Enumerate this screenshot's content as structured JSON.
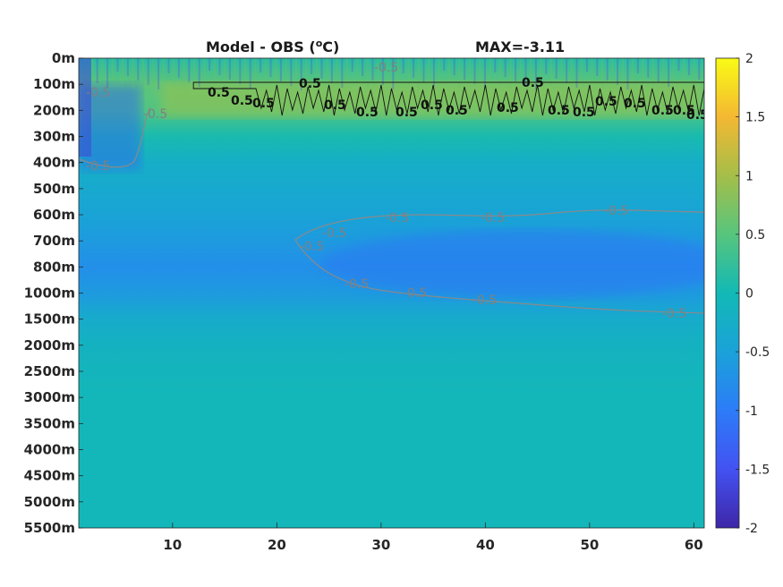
{
  "chart_data": {
    "type": "heatmap",
    "title_left": "Model - OBS (",
    "title_sup": "o",
    "title_right": "C)",
    "max_label": "MAX=-3.11",
    "xlim": [
      1,
      61
    ],
    "x_ticks": [
      10,
      20,
      30,
      40,
      50,
      60
    ],
    "depth_ticks": [
      "0m",
      "100m",
      "200m",
      "300m",
      "400m",
      "500m",
      "600m",
      "700m",
      "800m",
      "1000m",
      "1500m",
      "2000m",
      "2500m",
      "3000m",
      "3500m",
      "4000m",
      "4500m",
      "5000m",
      "5500m"
    ],
    "colorbar": {
      "colormap": "parula",
      "clim": [
        -2,
        2
      ],
      "ticks": [
        2,
        1.5,
        1,
        0.5,
        0,
        -0.5,
        -1,
        -1.5,
        -2
      ],
      "tick_labels": [
        "2",
        "1.5",
        "1",
        "0.5",
        "0",
        "-0.5",
        "-1",
        "-1.5",
        "-2"
      ]
    },
    "field_by_depth_level": [
      {
        "depth": "0m",
        "value": 0.15
      },
      {
        "depth": "100m",
        "value": 0.55
      },
      {
        "depth": "200m",
        "value": 0.45
      },
      {
        "depth": "300m",
        "value": 0.05
      },
      {
        "depth": "400m",
        "value": -0.25
      },
      {
        "depth": "500m",
        "value": -0.35
      },
      {
        "depth": "600m",
        "value": -0.45
      },
      {
        "depth": "700m",
        "value": -0.6
      },
      {
        "depth": "800m",
        "value": -0.75
      },
      {
        "depth": "1000m",
        "value": -0.6
      },
      {
        "depth": "1500m",
        "value": -0.3
      },
      {
        "depth": "2000m",
        "value": -0.15
      },
      {
        "depth": "2500m",
        "value": -0.1
      },
      {
        "depth": "3000m",
        "value": -0.05
      },
      {
        "depth": "3500m",
        "value": -0.05
      },
      {
        "depth": "4000m",
        "value": -0.05
      },
      {
        "depth": "4500m",
        "value": -0.05
      },
      {
        "depth": "5000m",
        "value": -0.05
      },
      {
        "depth": "5500m",
        "value": -0.05
      }
    ],
    "contours": [
      {
        "level": 0.5,
        "color": "#111111",
        "labels": [
          "0.5",
          "0.5",
          "0.5",
          "0.5",
          "0.5",
          "0.5",
          "0.5",
          "0.5",
          "0.5",
          "0.5",
          "0.5",
          "0.5",
          "0.5",
          "0.5",
          "0.5",
          "0.5",
          "0.5",
          "0.5"
        ]
      },
      {
        "level": -0.5,
        "color": "#808080",
        "labels": [
          "-0.5",
          "-0.5",
          "-0.5",
          "-0.5",
          "-0.5",
          "-0.5",
          "-0.5",
          "-0.5",
          "-0.5",
          "-0.5",
          "-0.5",
          "-0.5",
          "-0.5"
        ]
      }
    ]
  }
}
